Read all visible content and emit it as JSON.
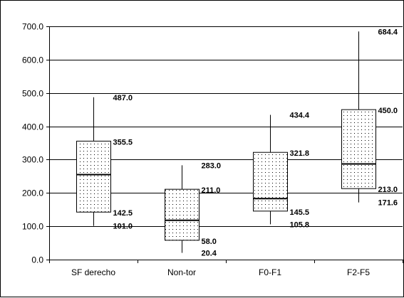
{
  "chart_data": {
    "type": "box",
    "title": "",
    "xlabel": "",
    "ylabel": "",
    "categories": [
      "SF derecho",
      "Non-tor",
      "F0-F1",
      "F2-F5"
    ],
    "ylim": [
      0,
      700
    ],
    "yticks": [
      0,
      100,
      200,
      300,
      400,
      500,
      600,
      700
    ],
    "ytick_labels": [
      "0.0",
      "100.0",
      "200.0",
      "300.0",
      "400.0",
      "500.0",
      "600.0",
      "700.0"
    ],
    "grid": "horizontal",
    "legend": "none",
    "boxes": [
      {
        "category": "SF derecho",
        "min": 101.0,
        "q1": 142.5,
        "median": 255,
        "q3": 355.5,
        "max": 487.0,
        "labels": {
          "max": "487.0",
          "q3": "355.5",
          "q1": "142.5",
          "min": "101.0"
        }
      },
      {
        "category": "Non-tor",
        "min": 20.4,
        "q1": 58.0,
        "median": 118,
        "q3": 211.0,
        "max": 283.0,
        "labels": {
          "max": "283.0",
          "q3": "211.0",
          "q1": "58.0",
          "min": "20.4"
        }
      },
      {
        "category": "F0-F1",
        "min": 105.8,
        "q1": 145.5,
        "median": 183,
        "q3": 321.8,
        "max": 434.4,
        "labels": {
          "max": "434.4",
          "q3": "321.8",
          "q1": "145.5",
          "min": "105.8"
        }
      },
      {
        "category": "F2-F5",
        "min": 171.6,
        "q1": 213.0,
        "median": 287,
        "q3": 450.0,
        "max": 684.4,
        "labels": {
          "max": "684.4",
          "q3": "450.0",
          "q1": "213.0",
          "min": "171.6"
        }
      }
    ],
    "colors": {
      "box_fill": "#ffffff",
      "stipple": "#000000",
      "lines": "#000000",
      "grid": "#000000"
    }
  }
}
